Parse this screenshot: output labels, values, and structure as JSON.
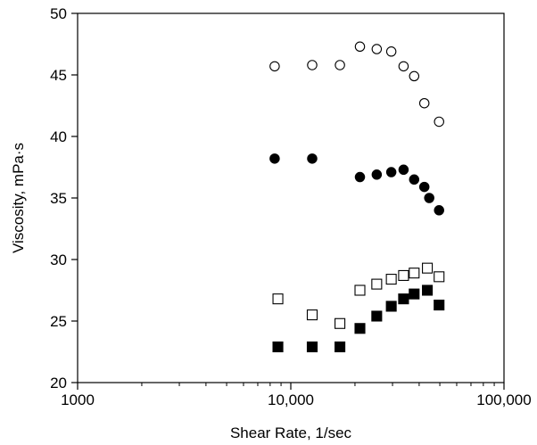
{
  "chart_data": {
    "type": "scatter",
    "xlabel": "Shear Rate, 1/sec",
    "ylabel": "Viscosity, mPa·s",
    "xscale": "log",
    "xlim": [
      1000,
      100000
    ],
    "ylim": [
      20,
      50
    ],
    "x_ticks": [
      1000,
      10000,
      100000
    ],
    "x_tick_labels": [
      "1000",
      "10,000",
      "100,000"
    ],
    "y_ticks": [
      20,
      25,
      30,
      35,
      40,
      45,
      50
    ],
    "y_tick_labels": [
      "20",
      "25",
      "30",
      "35",
      "40",
      "45",
      "50"
    ],
    "grid": false,
    "series": [
      {
        "marker": "open-circle",
        "points": [
          [
            8400,
            45.7
          ],
          [
            12600,
            45.8
          ],
          [
            17000,
            45.8
          ],
          [
            21100,
            47.3
          ],
          [
            25300,
            47.1
          ],
          [
            29600,
            46.9
          ],
          [
            33800,
            45.7
          ],
          [
            37900,
            44.9
          ],
          [
            42300,
            42.7
          ],
          [
            49600,
            41.2
          ]
        ]
      },
      {
        "marker": "filled-circle",
        "points": [
          [
            8400,
            38.2
          ],
          [
            12600,
            38.2
          ],
          [
            21100,
            36.7
          ],
          [
            25300,
            36.9
          ],
          [
            29600,
            37.1
          ],
          [
            33800,
            37.3
          ],
          [
            37900,
            36.5
          ],
          [
            42300,
            35.9
          ],
          [
            44600,
            35.0
          ],
          [
            49600,
            34.0
          ]
        ]
      },
      {
        "marker": "open-square",
        "points": [
          [
            8700,
            26.8
          ],
          [
            12600,
            25.5
          ],
          [
            17000,
            24.8
          ],
          [
            21100,
            27.5
          ],
          [
            25300,
            28.0
          ],
          [
            29600,
            28.4
          ],
          [
            33800,
            28.7
          ],
          [
            37900,
            28.9
          ],
          [
            43700,
            29.3
          ],
          [
            49600,
            28.6
          ]
        ]
      },
      {
        "marker": "filled-square",
        "points": [
          [
            8700,
            22.9
          ],
          [
            12600,
            22.9
          ],
          [
            17000,
            22.9
          ],
          [
            21100,
            24.4
          ],
          [
            25300,
            25.4
          ],
          [
            29600,
            26.2
          ],
          [
            33800,
            26.8
          ],
          [
            37900,
            27.2
          ],
          [
            43700,
            27.5
          ],
          [
            49600,
            26.3
          ]
        ]
      }
    ]
  }
}
